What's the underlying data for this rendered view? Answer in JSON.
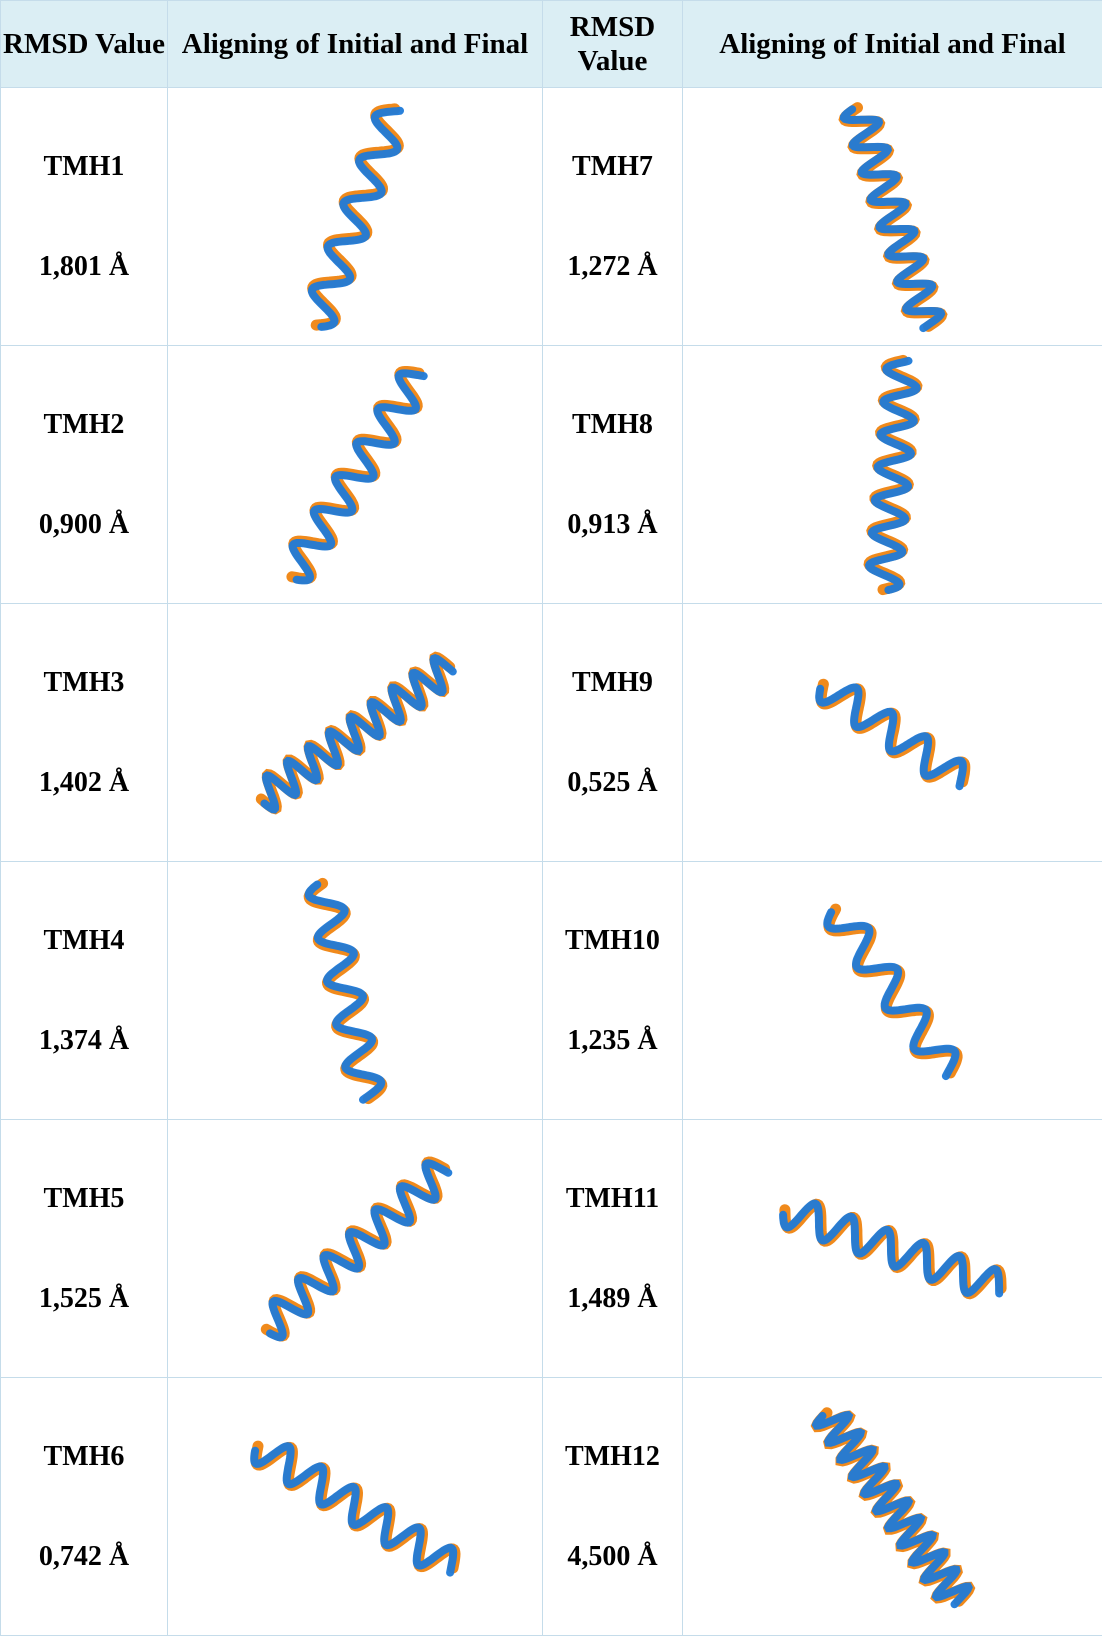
{
  "table": {
    "header": [
      "RMSD Value",
      "Aligning of Initial and Final",
      "RMSD Value",
      "Aligning of Initial and Final"
    ],
    "rows": [
      {
        "left": {
          "label": "TMH1",
          "rmsd": "1,801 Å"
        },
        "right": {
          "label": "TMH7",
          "rmsd": "1,272 Å"
        }
      },
      {
        "left": {
          "label": "TMH2",
          "rmsd": "0,900 Å"
        },
        "right": {
          "label": "TMH8",
          "rmsd": "0,913 Å"
        }
      },
      {
        "left": {
          "label": "TMH3",
          "rmsd": "1,402 Å"
        },
        "right": {
          "label": "TMH9",
          "rmsd": "0,525 Å"
        }
      },
      {
        "left": {
          "label": "TMH4",
          "rmsd": "1,374 Å"
        },
        "right": {
          "label": "TMH10",
          "rmsd": "1,235 Å"
        }
      },
      {
        "left": {
          "label": "TMH5",
          "rmsd": "1,525 Å"
        },
        "right": {
          "label": "TMH11",
          "rmsd": "1,489 Å"
        }
      },
      {
        "left": {
          "label": "TMH6",
          "rmsd": "0,742 Å"
        },
        "right": {
          "label": "TMH12",
          "rmsd": "4,500 Å"
        }
      }
    ]
  }
}
